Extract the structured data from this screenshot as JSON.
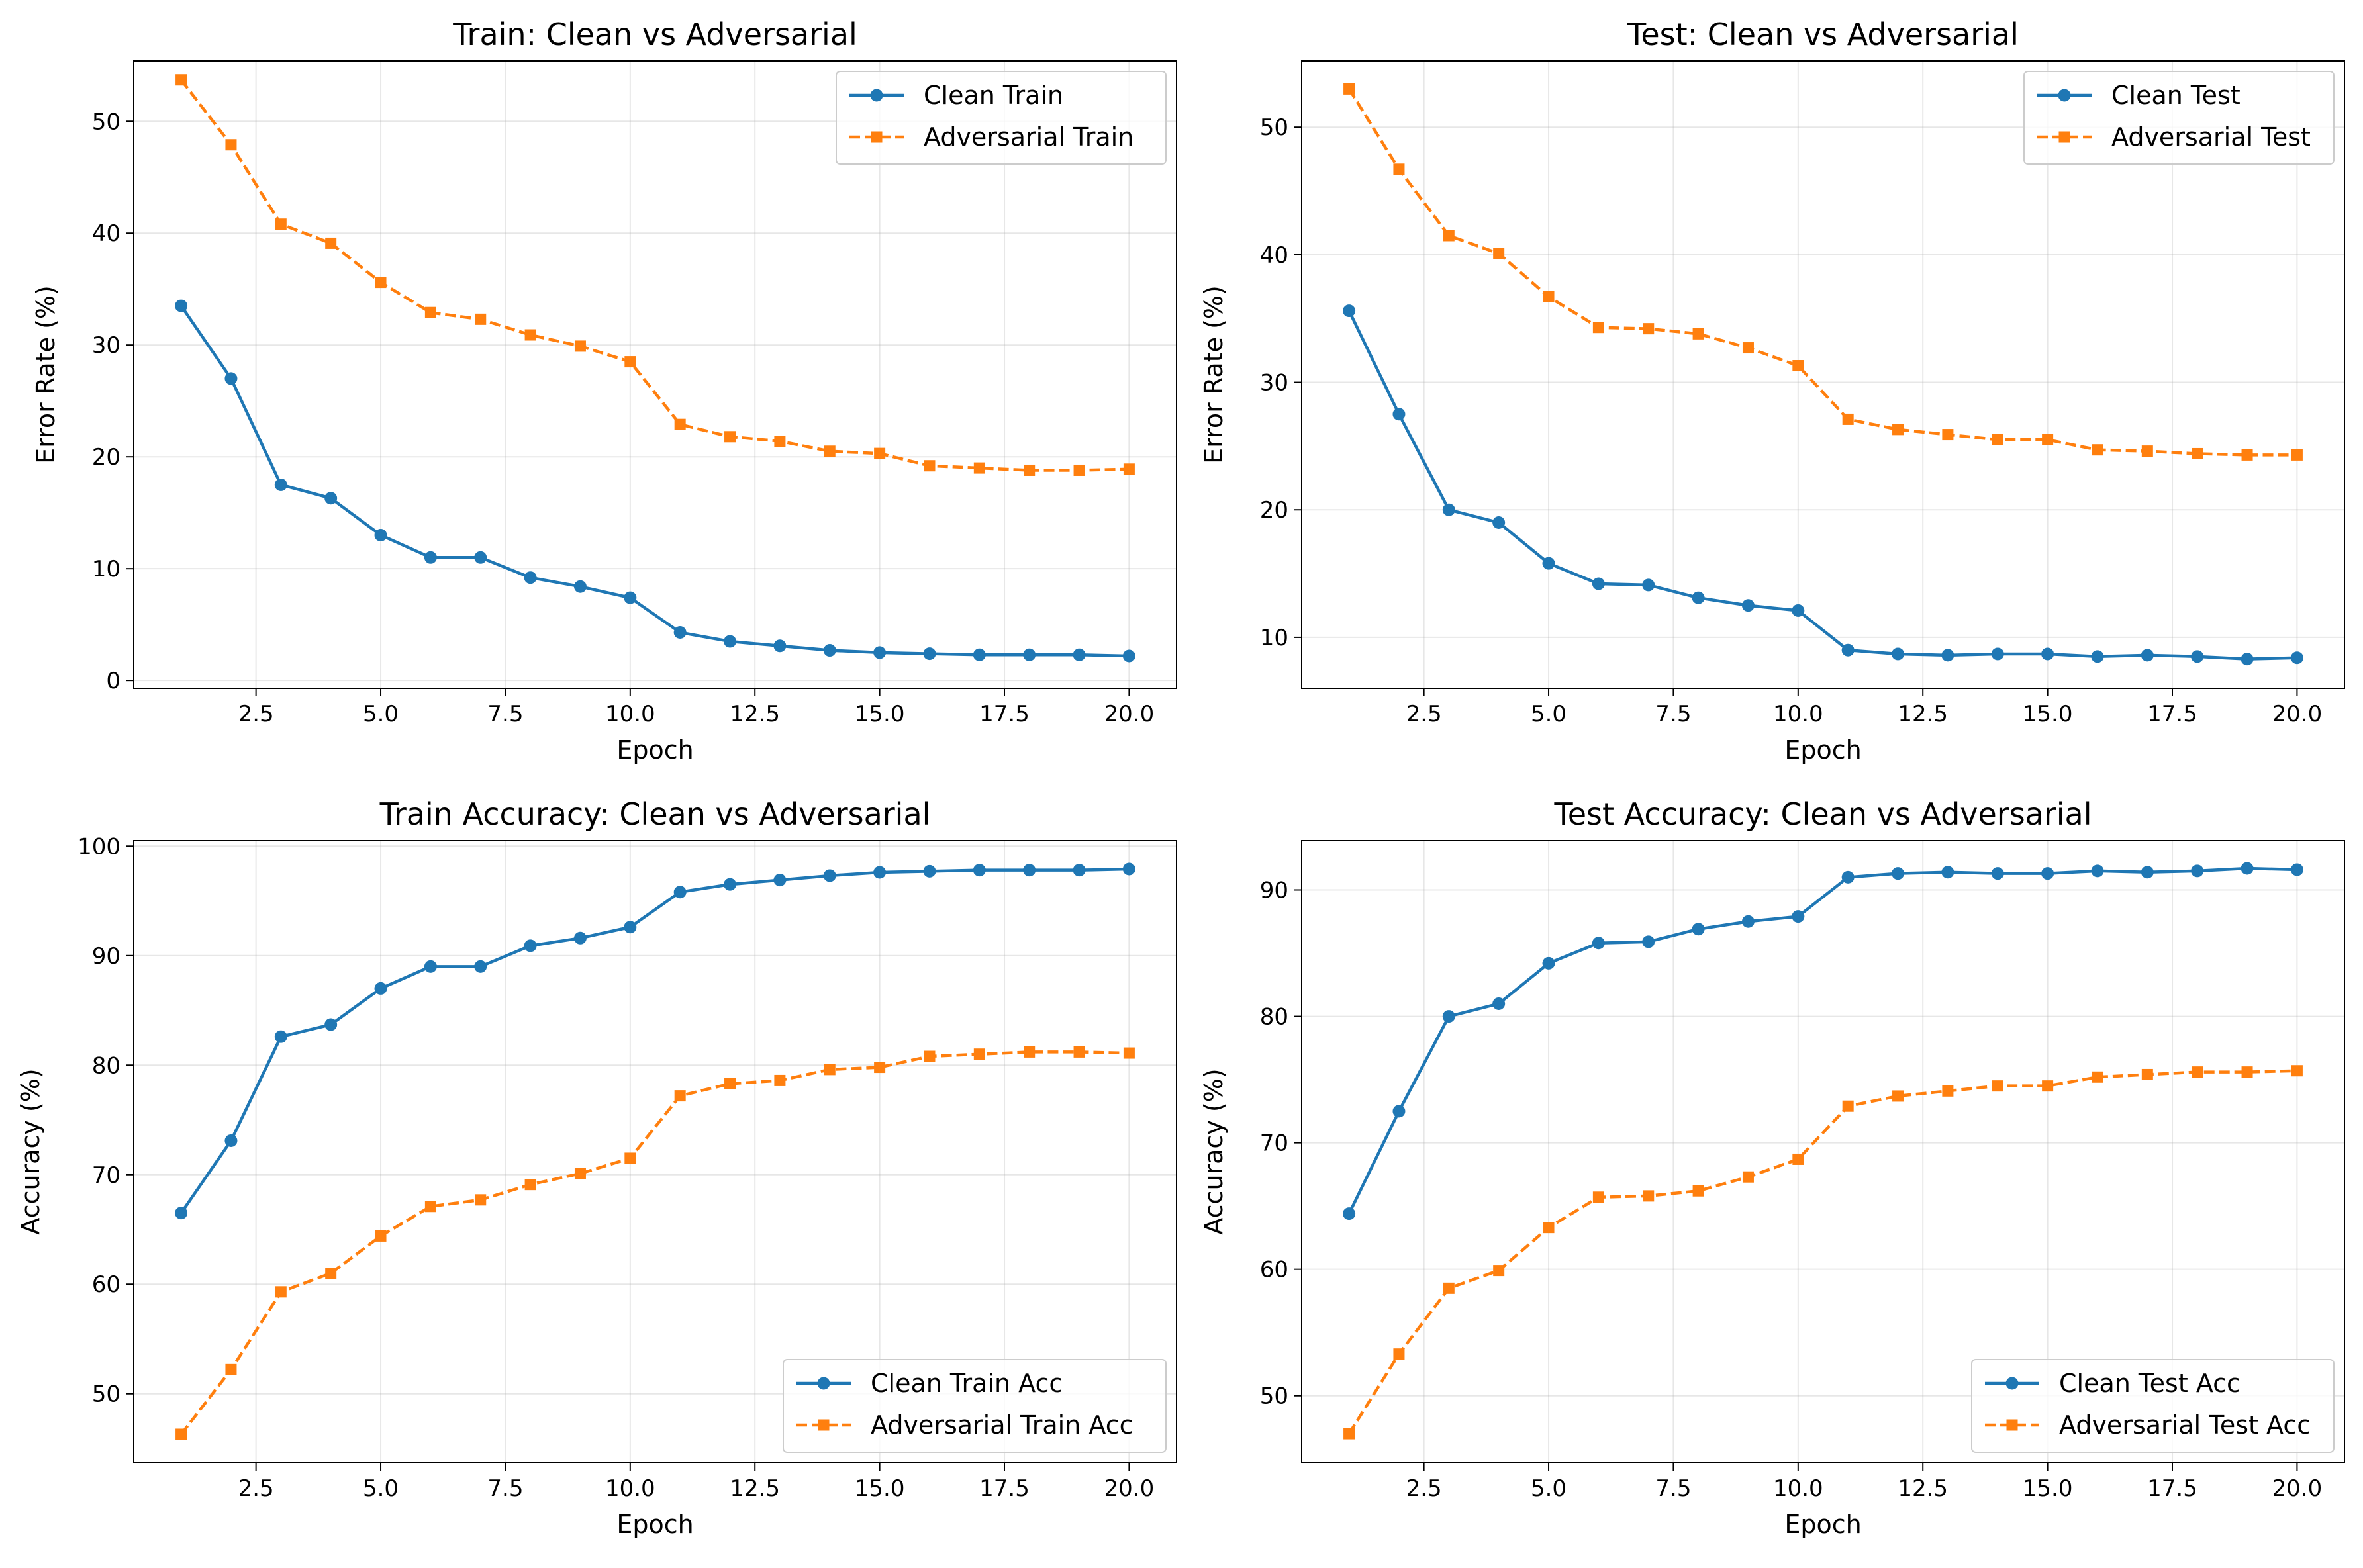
{
  "chart_data": [
    {
      "type": "line",
      "title": "Train: Clean vs Adversarial",
      "xlabel": "Epoch",
      "ylabel": "Error Rate (%)",
      "xlim": [
        0.05,
        20.95
      ],
      "ylim": [
        -0.7,
        55.4
      ],
      "xticks": [
        2.5,
        5.0,
        7.5,
        10.0,
        12.5,
        15.0,
        17.5,
        20.0
      ],
      "xtick_labels": [
        "2.5",
        "5.0",
        "7.5",
        "10.0",
        "12.5",
        "15.0",
        "17.5",
        "20.0"
      ],
      "yticks": [
        0,
        10,
        20,
        30,
        40,
        50
      ],
      "ytick_labels": [
        "0",
        "10",
        "20",
        "30",
        "40",
        "50"
      ],
      "grid": true,
      "legend_position": "upper right",
      "x": [
        1,
        2,
        3,
        4,
        5,
        6,
        7,
        8,
        9,
        10,
        11,
        12,
        13,
        14,
        15,
        16,
        17,
        18,
        19,
        20
      ],
      "series": [
        {
          "name": "Clean Train",
          "color": "#1f77b4",
          "style": "solid",
          "marker": "circle",
          "values": [
            33.5,
            27.0,
            17.5,
            16.3,
            13.0,
            11.0,
            11.0,
            9.2,
            8.4,
            7.4,
            4.3,
            3.5,
            3.1,
            2.7,
            2.5,
            2.4,
            2.3,
            2.3,
            2.3,
            2.2
          ]
        },
        {
          "name": "Adversarial Train",
          "color": "#ff7f0e",
          "style": "dashed",
          "marker": "square",
          "values": [
            53.7,
            47.9,
            40.8,
            39.1,
            35.6,
            32.9,
            32.3,
            30.9,
            29.9,
            28.5,
            22.9,
            21.8,
            21.4,
            20.5,
            20.3,
            19.2,
            19.0,
            18.8,
            18.8,
            18.9
          ]
        }
      ]
    },
    {
      "type": "line",
      "title": "Test: Clean vs Adversarial",
      "xlabel": "Epoch",
      "ylabel": "Error Rate (%)",
      "xlim": [
        0.05,
        20.95
      ],
      "ylim": [
        6.0,
        55.2
      ],
      "xticks": [
        2.5,
        5.0,
        7.5,
        10.0,
        12.5,
        15.0,
        17.5,
        20.0
      ],
      "xtick_labels": [
        "2.5",
        "5.0",
        "7.5",
        "10.0",
        "12.5",
        "15.0",
        "17.5",
        "20.0"
      ],
      "yticks": [
        10,
        20,
        30,
        40,
        50
      ],
      "ytick_labels": [
        "10",
        "20",
        "30",
        "40",
        "50"
      ],
      "grid": true,
      "legend_position": "upper right",
      "x": [
        1,
        2,
        3,
        4,
        5,
        6,
        7,
        8,
        9,
        10,
        11,
        12,
        13,
        14,
        15,
        16,
        17,
        18,
        19,
        20
      ],
      "series": [
        {
          "name": "Clean Test",
          "color": "#1f77b4",
          "style": "solid",
          "marker": "circle",
          "values": [
            35.6,
            27.5,
            20.0,
            19.0,
            15.8,
            14.2,
            14.1,
            13.1,
            12.5,
            12.1,
            9.0,
            8.7,
            8.6,
            8.7,
            8.7,
            8.5,
            8.6,
            8.5,
            8.3,
            8.4
          ]
        },
        {
          "name": "Adversarial Test",
          "color": "#ff7f0e",
          "style": "dashed",
          "marker": "square",
          "values": [
            53.0,
            46.7,
            41.5,
            40.1,
            36.7,
            34.3,
            34.2,
            33.8,
            32.7,
            31.3,
            27.1,
            26.3,
            25.9,
            25.5,
            25.5,
            24.7,
            24.6,
            24.4,
            24.3,
            24.3
          ]
        }
      ]
    },
    {
      "type": "line",
      "title": "Train Accuracy: Clean vs Adversarial",
      "xlabel": "Epoch",
      "ylabel": "Accuracy (%)",
      "xlim": [
        0.05,
        20.95
      ],
      "ylim": [
        43.7,
        100.5
      ],
      "xticks": [
        2.5,
        5.0,
        7.5,
        10.0,
        12.5,
        15.0,
        17.5,
        20.0
      ],
      "xtick_labels": [
        "2.5",
        "5.0",
        "7.5",
        "10.0",
        "12.5",
        "15.0",
        "17.5",
        "20.0"
      ],
      "yticks": [
        50,
        60,
        70,
        80,
        90,
        100
      ],
      "ytick_labels": [
        "50",
        "60",
        "70",
        "80",
        "90",
        "100"
      ],
      "grid": true,
      "legend_position": "lower right",
      "x": [
        1,
        2,
        3,
        4,
        5,
        6,
        7,
        8,
        9,
        10,
        11,
        12,
        13,
        14,
        15,
        16,
        17,
        18,
        19,
        20
      ],
      "series": [
        {
          "name": "Clean Train Acc",
          "color": "#1f77b4",
          "style": "solid",
          "marker": "circle",
          "values": [
            66.5,
            73.1,
            82.6,
            83.7,
            87.0,
            89.0,
            89.0,
            90.9,
            91.6,
            92.6,
            95.8,
            96.5,
            96.9,
            97.3,
            97.6,
            97.7,
            97.8,
            97.8,
            97.8,
            97.9
          ]
        },
        {
          "name": "Adversarial Train Acc",
          "color": "#ff7f0e",
          "style": "dashed",
          "marker": "square",
          "values": [
            46.3,
            52.2,
            59.3,
            61.0,
            64.4,
            67.1,
            67.7,
            69.1,
            70.1,
            71.5,
            77.2,
            78.3,
            78.6,
            79.6,
            79.8,
            80.8,
            81.0,
            81.2,
            81.2,
            81.1
          ]
        }
      ]
    },
    {
      "type": "line",
      "title": "Test Accuracy: Clean vs Adversarial",
      "xlabel": "Epoch",
      "ylabel": "Accuracy (%)",
      "xlim": [
        0.05,
        20.95
      ],
      "ylim": [
        44.7,
        93.9
      ],
      "xticks": [
        2.5,
        5.0,
        7.5,
        10.0,
        12.5,
        15.0,
        17.5,
        20.0
      ],
      "xtick_labels": [
        "2.5",
        "5.0",
        "7.5",
        "10.0",
        "12.5",
        "15.0",
        "17.5",
        "20.0"
      ],
      "yticks": [
        50,
        60,
        70,
        80,
        90
      ],
      "ytick_labels": [
        "50",
        "60",
        "70",
        "80",
        "90"
      ],
      "grid": true,
      "legend_position": "lower right",
      "x": [
        1,
        2,
        3,
        4,
        5,
        6,
        7,
        8,
        9,
        10,
        11,
        12,
        13,
        14,
        15,
        16,
        17,
        18,
        19,
        20
      ],
      "series": [
        {
          "name": "Clean Test Acc",
          "color": "#1f77b4",
          "style": "solid",
          "marker": "circle",
          "values": [
            64.4,
            72.5,
            80.0,
            81.0,
            84.2,
            85.8,
            85.9,
            86.9,
            87.5,
            87.9,
            91.0,
            91.3,
            91.4,
            91.3,
            91.3,
            91.5,
            91.4,
            91.5,
            91.7,
            91.6
          ]
        },
        {
          "name": "Adversarial Test Acc",
          "color": "#ff7f0e",
          "style": "dashed",
          "marker": "square",
          "values": [
            47.0,
            53.3,
            58.5,
            59.9,
            63.3,
            65.7,
            65.8,
            66.2,
            67.3,
            68.7,
            72.9,
            73.7,
            74.1,
            74.5,
            74.5,
            75.2,
            75.4,
            75.6,
            75.6,
            75.7
          ]
        }
      ]
    }
  ]
}
